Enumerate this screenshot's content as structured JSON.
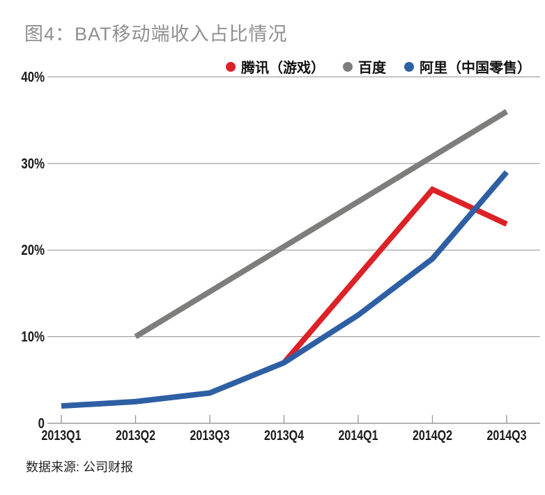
{
  "title": "图4：BAT移动端收入占比情况",
  "source_note": "数据来源: 公司财报",
  "colors": {
    "tencent_red": "#dc2127",
    "baidu_gray": "#7d7d7b",
    "ali_blue": "#2e5fa3",
    "gridline": "#9b9b9b",
    "axis_text": "#1a1a1a",
    "title_gray": "#8f8f8f"
  },
  "chart_data": {
    "type": "line",
    "title": "图4：BAT移动端收入占比情况",
    "categories": [
      "2013Q1",
      "2013Q2",
      "2013Q3",
      "2013Q4",
      "2014Q1",
      "2014Q2",
      "2014Q3"
    ],
    "series": [
      {
        "name": "腾讯（游戏）",
        "color": "#dc2127",
        "values": [
          null,
          null,
          null,
          7,
          17,
          27,
          23
        ]
      },
      {
        "name": "百度",
        "color": "#7d7d7b",
        "values": [
          null,
          10,
          15.2,
          20.4,
          25.6,
          30.8,
          36
        ]
      },
      {
        "name": "阿里（中国零售）",
        "color": "#2e5fa3",
        "values": [
          2,
          2.5,
          3.5,
          7,
          12.5,
          19,
          29
        ]
      }
    ],
    "y_ticks": [
      0,
      10,
      20,
      30,
      40
    ],
    "y_tick_labels": [
      "0",
      "10%",
      "20%",
      "30%",
      "40%"
    ],
    "ylim": [
      0,
      40
    ],
    "grid": true,
    "legend_position": "top-right",
    "source": "数据来源: 公司财报"
  }
}
